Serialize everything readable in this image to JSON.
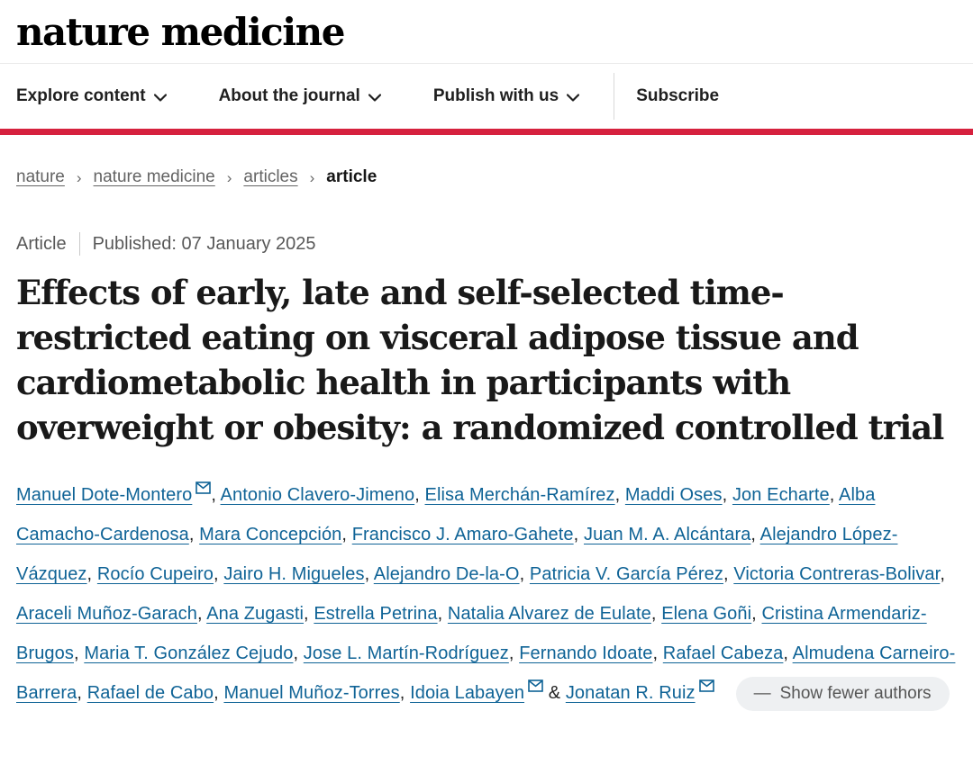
{
  "header": {
    "logo": "nature medicine"
  },
  "nav": {
    "items": [
      {
        "label": "Explore content"
      },
      {
        "label": "About the journal"
      },
      {
        "label": "Publish with us"
      }
    ],
    "subscribe_label": "Subscribe"
  },
  "breadcrumb": {
    "links": [
      "nature",
      "nature medicine",
      "articles"
    ],
    "current": "article",
    "separator": "›"
  },
  "article": {
    "type_label": "Article",
    "published_text": "Published: 07 January 2025",
    "title": "Effects of early, late and self-selected time-restricted eating on visceral adipose tissue and cardiometabolic health in participants with overweight or obesity: a randomized controlled trial",
    "authors": [
      {
        "name": "Manuel Dote-Montero",
        "email": true
      },
      {
        "name": "Antonio Clavero-Jimeno",
        "email": false
      },
      {
        "name": "Elisa Merchán-Ramírez",
        "email": false
      },
      {
        "name": "Maddi Oses",
        "email": false
      },
      {
        "name": "Jon Echarte",
        "email": false
      },
      {
        "name": "Alba Camacho-Cardenosa",
        "email": false
      },
      {
        "name": "Mara Concepción",
        "email": false
      },
      {
        "name": "Francisco J. Amaro-Gahete",
        "email": false
      },
      {
        "name": "Juan M. A. Alcántara",
        "email": false
      },
      {
        "name": "Alejandro López-Vázquez",
        "email": false
      },
      {
        "name": "Rocío Cupeiro",
        "email": false
      },
      {
        "name": "Jairo H. Migueles",
        "email": false
      },
      {
        "name": "Alejandro De-la-O",
        "email": false
      },
      {
        "name": "Patricia V. García Pérez",
        "email": false
      },
      {
        "name": "Victoria Contreras-Bolivar",
        "email": false
      },
      {
        "name": "Araceli Muñoz-Garach",
        "email": false
      },
      {
        "name": "Ana Zugasti",
        "email": false
      },
      {
        "name": "Estrella Petrina",
        "email": false
      },
      {
        "name": "Natalia Alvarez de Eulate",
        "email": false
      },
      {
        "name": "Elena Goñi",
        "email": false
      },
      {
        "name": "Cristina Armendariz-Brugos",
        "email": false
      },
      {
        "name": "Maria T. González Cejudo",
        "email": false
      },
      {
        "name": "Jose L. Martín-Rodríguez",
        "email": false
      },
      {
        "name": "Fernando Idoate",
        "email": false
      },
      {
        "name": "Rafael Cabeza",
        "email": false
      },
      {
        "name": "Almudena Carneiro-Barrera",
        "email": false
      },
      {
        "name": "Rafael de Cabo",
        "email": false
      },
      {
        "name": "Manuel Muñoz-Torres",
        "email": false
      },
      {
        "name": "Idoia Labayen",
        "email": true
      },
      {
        "name": "Jonatan R. Ruiz",
        "email": true
      }
    ],
    "author_separator": ", ",
    "author_conjunction": " & ",
    "show_fewer": {
      "dash": "—",
      "label": "Show fewer authors"
    }
  },
  "colors": {
    "accent_red": "#d6213e",
    "link_blue": "#0f6396"
  }
}
